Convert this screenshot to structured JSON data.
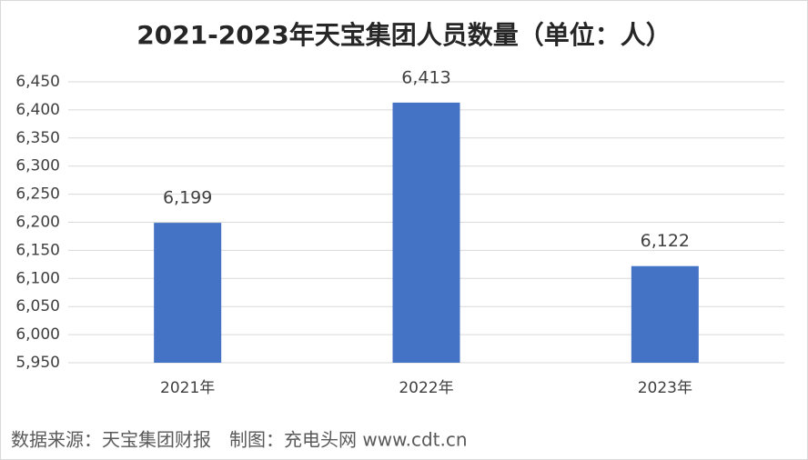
{
  "chart_data": {
    "type": "bar",
    "title": "2021-2023年天宝集团人员数量（单位：人）",
    "categories": [
      "2021年",
      "2022年",
      "2023年"
    ],
    "values": [
      6199,
      6413,
      6122
    ],
    "value_labels": [
      "6,199",
      "6,413",
      "6,122"
    ],
    "color": "#4472c4",
    "ylim": [
      5950,
      6450
    ],
    "yticks": [
      {
        "value": 5950,
        "label": "5,950"
      },
      {
        "value": 6000,
        "label": "6,000"
      },
      {
        "value": 6050,
        "label": "6,050"
      },
      {
        "value": 6100,
        "label": "6,100"
      },
      {
        "value": 6150,
        "label": "6,150"
      },
      {
        "value": 6200,
        "label": "6,200"
      },
      {
        "value": 6250,
        "label": "6,250"
      },
      {
        "value": 6300,
        "label": "6,300"
      },
      {
        "value": 6350,
        "label": "6,350"
      },
      {
        "value": 6400,
        "label": "6,400"
      },
      {
        "value": 6450,
        "label": "6,450"
      }
    ],
    "grid": true,
    "source": "数据来源：天宝集团财报　制图：充电头网 www.cdt.cn"
  }
}
